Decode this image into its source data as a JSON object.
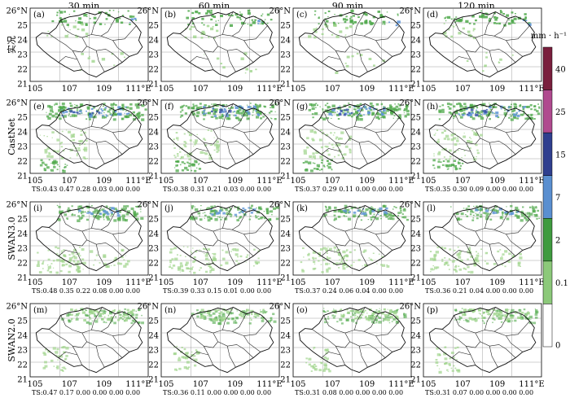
{
  "columns": [
    "30 min",
    "60 min",
    "90 min",
    "120 min"
  ],
  "rows": [
    {
      "label": "实况",
      "panels": [
        "(a)",
        "(b)",
        "(c)",
        "(d)"
      ],
      "ts": [
        "",
        "",
        "",
        ""
      ]
    },
    {
      "label": "CastNet",
      "panels": [
        "(e)",
        "(f)",
        "(g)",
        "(h)"
      ],
      "ts": [
        "TS:0.43 0.47 0.28 0.03 0.00 0.00",
        "TS:0.38 0.31 0.21 0.03 0.00 0.00",
        "TS:0.37 0.29 0.11 0.00 0.00 0.00",
        "TS:0.35 0.30 0.09 0.00 0.00 0.00"
      ]
    },
    {
      "label": "SWAN3.0",
      "panels": [
        "(i)",
        "(j)",
        "(k)",
        "(l)"
      ],
      "ts": [
        "TS:0.48 0.35 0.22 0.08 0.00 0.00",
        "TS:0.39 0.33 0.15 0.01 0.00 0.00",
        "TS:0.37 0.24 0.06 0.04 0.00 0.00",
        "TS:0.36 0.21 0.04 0.00 0.00 0.00"
      ]
    },
    {
      "label": "SWAN2.0",
      "panels": [
        "(m)",
        "(n)",
        "(o)",
        "(p)"
      ],
      "ts": [
        "TS:0.47 0.17 0.00 0.00 0.00 0.00",
        "TS:0.36 0.11 0.00 0.00 0.00 0.00",
        "TS:0.31 0.08 0.00 0.00 0.00 0.00",
        "TS:0.31 0.07 0.00 0.00 0.00 0.00"
      ]
    }
  ],
  "axes": {
    "lat_ticks": [
      "26°N",
      "25",
      "24",
      "23",
      "22",
      "21"
    ],
    "lon_ticks": [
      "105",
      "107",
      "109",
      "111°E"
    ]
  },
  "colorbar": {
    "unit": "mm · h⁻¹",
    "labels": [
      "40",
      "25",
      "15",
      "7",
      "2",
      "0.1",
      "0"
    ],
    "colors": [
      "#7a1f3d",
      "#b04a8f",
      "#2f3f8f",
      "#5a8fd0",
      "#3f9b3f",
      "#8cc97a",
      "#ffffff"
    ]
  }
}
